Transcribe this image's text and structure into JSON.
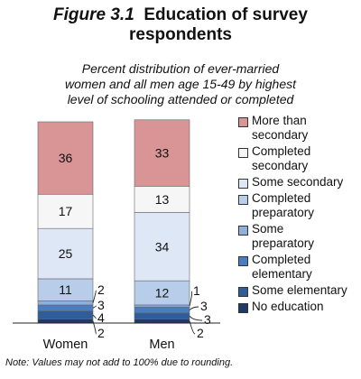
{
  "header": {
    "figure_number": "Figure 3.1",
    "title": "Education of survey respondents",
    "subtitle_lines": [
      "Percent distribution of ever-married",
      "women and all men age 15-49 by highest",
      "level of schooling attended or completed"
    ]
  },
  "note": "Note: Values may not add to 100% due to rounding.",
  "colors": {
    "no_education": "#1f3a68",
    "some_elementary": "#2f5d9a",
    "completed_elementary": "#4a7cc1",
    "some_preparatory": "#8fb0db",
    "completed_preparatory": "#b7cde9",
    "some_secondary": "#dde7f5",
    "completed_secondary": "#f6f6f6",
    "more_than_secondary": "#d99496"
  },
  "chart_data": {
    "type": "bar",
    "stacked": true,
    "categories": [
      "Women",
      "Men"
    ],
    "series": [
      {
        "name": "No education",
        "key": "no_education",
        "values": [
          2,
          2
        ]
      },
      {
        "name": "Some elementary",
        "key": "some_elementary",
        "values": [
          4,
          3
        ]
      },
      {
        "name": "Completed elementary",
        "key": "completed_elementary",
        "values": [
          3,
          3
        ]
      },
      {
        "name": "Some preparatory",
        "key": "some_preparatory",
        "values": [
          2,
          1
        ]
      },
      {
        "name": "Completed preparatory",
        "key": "completed_preparatory",
        "values": [
          11,
          12
        ]
      },
      {
        "name": "Some secondary",
        "key": "some_secondary",
        "values": [
          25,
          34
        ]
      },
      {
        "name": "Completed secondary",
        "key": "completed_secondary",
        "values": [
          17,
          13
        ]
      },
      {
        "name": "More than secondary",
        "key": "more_than_secondary",
        "values": [
          36,
          33
        ]
      }
    ],
    "legend_position": "right",
    "ylim": [
      0,
      100
    ],
    "grid": false
  }
}
